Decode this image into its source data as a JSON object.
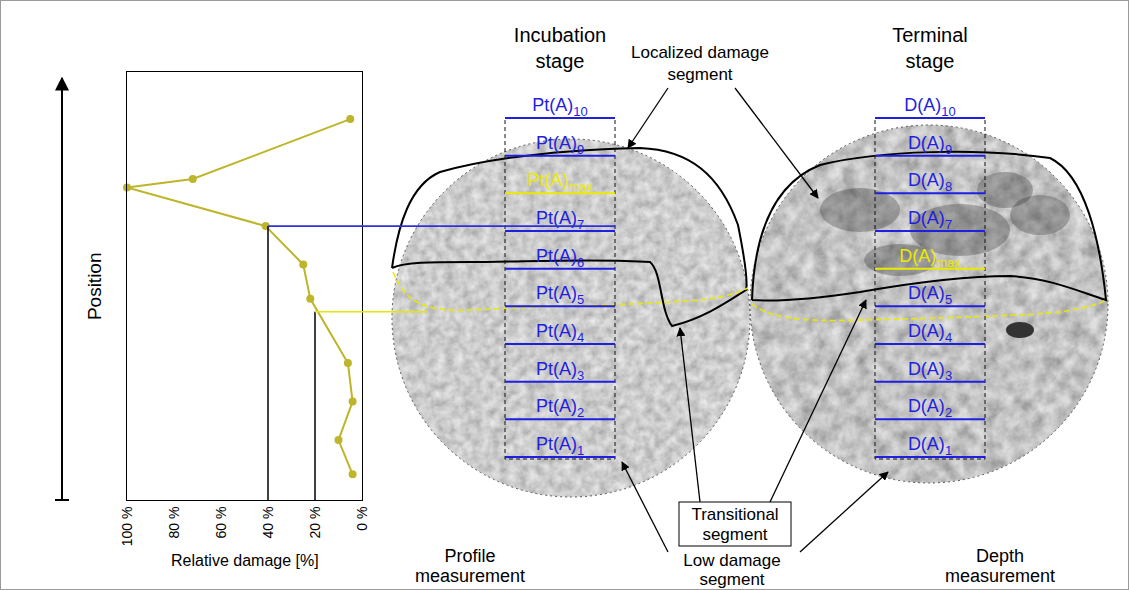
{
  "chart_data": {
    "type": "line",
    "x_label": "Relative damage [%]",
    "y_label": "Position",
    "x": [
      5,
      72,
      100,
      41,
      25,
      22,
      6,
      4,
      10,
      4
    ],
    "y": [
      8.9,
      7.5,
      7.3,
      6.4,
      5.5,
      4.7,
      3.2,
      2.3,
      1.4,
      0.6
    ],
    "color": "#bdb52a",
    "marker": "circle",
    "xlim": [
      100,
      0
    ],
    "xticks": [
      {
        "value": 100,
        "label": "100 %"
      },
      {
        "value": 80,
        "label": "80 %"
      },
      {
        "value": 60,
        "label": "60 %"
      },
      {
        "value": 40,
        "label": "40 %"
      },
      {
        "value": 20,
        "label": "20 %"
      },
      {
        "value": 0,
        "label": "0 %"
      }
    ],
    "ylim": [
      0,
      10
    ],
    "tick_labels": "x",
    "grid": false,
    "reference_lines": [
      {
        "x": 40,
        "y": 6.4,
        "color": "#2f2fe0"
      },
      {
        "x": 20,
        "y": 4.4,
        "color": "#e6e600"
      }
    ]
  },
  "diagram": {
    "panels": [
      {
        "title": "Incubation stage",
        "caption": "Profile measurement",
        "segments": [
          {
            "text": "Pt(A)",
            "sub": "10"
          },
          {
            "text": "Pt(A)",
            "sub": "9"
          },
          {
            "text": "Pt(A)",
            "sub": "max",
            "highlight": true
          },
          {
            "text": "Pt(A)",
            "sub": "7"
          },
          {
            "text": "Pt(A)",
            "sub": "6"
          },
          {
            "text": "Pt(A)",
            "sub": "5"
          },
          {
            "text": "Pt(A)",
            "sub": "4"
          },
          {
            "text": "Pt(A)",
            "sub": "3"
          },
          {
            "text": "Pt(A)",
            "sub": "2"
          },
          {
            "text": "Pt(A)",
            "sub": "1"
          }
        ]
      },
      {
        "title": "Terminal stage",
        "caption": "Depth measurement",
        "segments": [
          {
            "text": "D(A)",
            "sub": "10"
          },
          {
            "text": "D(A)",
            "sub": "9"
          },
          {
            "text": "D(A)",
            "sub": "8"
          },
          {
            "text": "D(A)",
            "sub": "7"
          },
          {
            "text": "D(A)",
            "sub": "max",
            "highlight": true
          },
          {
            "text": "D(A)",
            "sub": "5"
          },
          {
            "text": "D(A)",
            "sub": "4"
          },
          {
            "text": "D(A)",
            "sub": "3"
          },
          {
            "text": "D(A)",
            "sub": "2"
          },
          {
            "text": "D(A)",
            "sub": "1"
          }
        ]
      }
    ],
    "callouts": {
      "localized": "Localized damage segment",
      "transitional": "Transitional segment",
      "low": "Low damage segment"
    }
  }
}
